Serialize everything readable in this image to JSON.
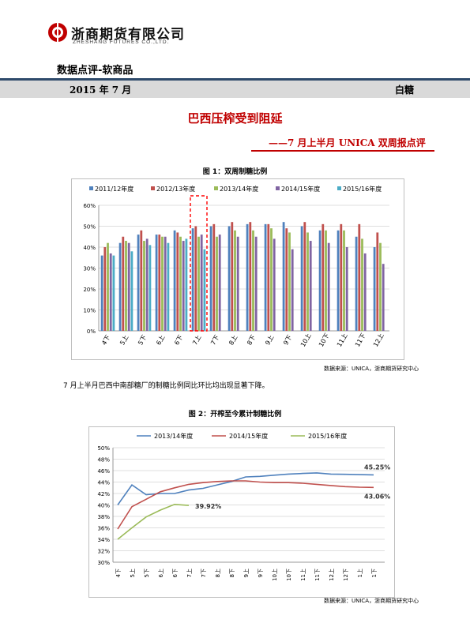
{
  "header": {
    "company_cn": "浙商期货有限公司",
    "company_en": "ZHESHANG FUTURES CO.,LTD.",
    "section_title": "数据点评-软商品",
    "date": "2015 年 7 月",
    "product": "白糖",
    "brand_color": "#c00000",
    "band_color": "#2e4a6b",
    "logo_icon": "zheshang-logo-icon"
  },
  "article": {
    "headline": "巴西压榨受到阻延",
    "subheadline": "——7 月上半月 UNICA 双周报点评",
    "body": "7 月上半月巴西中南部糖厂的制糖比例同比环比均出现显著下降。"
  },
  "figures": [
    {
      "title": "图 1：双周制糖比例",
      "source": "数据来源：UNICA，浙商期货研究中心"
    },
    {
      "title": "图 2：开榨至今累计制糖比例",
      "source": "数据来源：UNICA，浙商期货研究中心"
    }
  ],
  "chart_data": [
    {
      "type": "bar",
      "title": "图 1：双周制糖比例",
      "categories": [
        "4下",
        "5上",
        "5下",
        "6上",
        "6下",
        "7上",
        "7下",
        "8上",
        "8下",
        "9上",
        "9下",
        "10上",
        "10下",
        "11上",
        "11下",
        "12上"
      ],
      "ylim": [
        0,
        60
      ],
      "yticks": [
        "0%",
        "10%",
        "20%",
        "30%",
        "40%",
        "50%",
        "60%"
      ],
      "grid": true,
      "legend": "top",
      "highlight_category": "7上",
      "series": [
        {
          "name": "2011/12年度",
          "color": "#4f81bd",
          "values": [
            36,
            42,
            46,
            46,
            48,
            49,
            50,
            50,
            51,
            51,
            52,
            50,
            48,
            48,
            45,
            40
          ]
        },
        {
          "name": "2012/13年度",
          "color": "#c0504d",
          "values": [
            40,
            45,
            48,
            46,
            47,
            50,
            51,
            52,
            52,
            51,
            49,
            52,
            51,
            51,
            51,
            47
          ]
        },
        {
          "name": "2013/14年度",
          "color": "#9bbb59",
          "values": [
            42,
            43,
            43,
            45,
            45,
            45,
            45,
            48,
            48,
            49,
            47,
            47,
            48,
            48,
            44,
            42
          ]
        },
        {
          "name": "2014/15年度",
          "color": "#8064a2",
          "values": [
            37,
            42,
            44,
            45,
            43,
            46,
            46,
            45,
            45,
            44,
            39,
            43,
            42,
            40,
            37,
            32
          ]
        },
        {
          "name": "2015/16年度",
          "color": "#4bacc6",
          "values": [
            36,
            38,
            41,
            42,
            44,
            39,
            null,
            null,
            null,
            null,
            null,
            null,
            null,
            null,
            null,
            null
          ]
        }
      ]
    },
    {
      "type": "line",
      "title": "图 2：开榨至今累计制糖比例",
      "categories": [
        "4下",
        "5上",
        "5下",
        "6上",
        "6下",
        "7上",
        "7下",
        "8上",
        "8下",
        "9上",
        "9下",
        "10上",
        "10下",
        "11上",
        "11下",
        "12上",
        "12下",
        "1上",
        "1下"
      ],
      "ylim": [
        30,
        50
      ],
      "yticks": [
        "30%",
        "32%",
        "34%",
        "36%",
        "38%",
        "40%",
        "42%",
        "44%",
        "46%",
        "48%",
        "50%"
      ],
      "grid": true,
      "legend": "top",
      "series": [
        {
          "name": "2013/14年度",
          "color": "#4f81bd",
          "label": "45.25%",
          "values": [
            40.0,
            43.5,
            41.8,
            42.0,
            42.0,
            42.6,
            42.9,
            43.5,
            44.1,
            44.9,
            45.0,
            45.2,
            45.4,
            45.5,
            45.6,
            45.4,
            45.35,
            45.3,
            45.25
          ]
        },
        {
          "name": "2014/15年度",
          "color": "#c0504d",
          "label": "43.06%",
          "values": [
            35.8,
            39.7,
            41.0,
            42.3,
            43.0,
            43.6,
            43.9,
            44.1,
            44.2,
            44.2,
            44.0,
            43.9,
            43.9,
            43.8,
            43.6,
            43.4,
            43.2,
            43.1,
            43.06
          ]
        },
        {
          "name": "2015/16年度",
          "color": "#9bbb59",
          "label": "39.92%",
          "values": [
            34.0,
            36.0,
            37.9,
            39.1,
            40.1,
            39.92,
            null,
            null,
            null,
            null,
            null,
            null,
            null,
            null,
            null,
            null,
            null,
            null,
            null
          ]
        }
      ]
    }
  ]
}
